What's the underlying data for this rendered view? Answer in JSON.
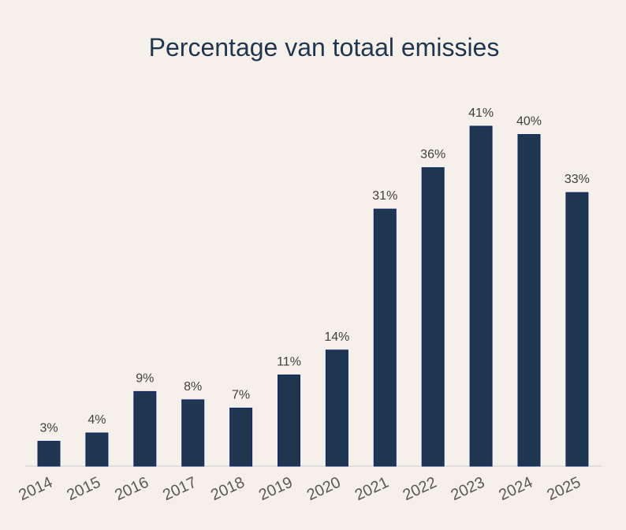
{
  "chart_data": {
    "type": "bar",
    "title": "Percentage van totaal emissies",
    "categories": [
      "2014",
      "2015",
      "2016",
      "2017",
      "2018",
      "2019",
      "2020",
      "2021",
      "2022",
      "2023",
      "2024",
      "2025"
    ],
    "values": [
      3,
      4,
      9,
      8,
      7,
      11,
      14,
      31,
      36,
      41,
      40,
      33
    ],
    "data_labels": [
      "3%",
      "4%",
      "9%",
      "8%",
      "7%",
      "11%",
      "14%",
      "31%",
      "36%",
      "41%",
      "40%",
      "33%"
    ],
    "xlabel": "",
    "ylabel": "",
    "ylim": [
      0,
      41
    ],
    "grid": false,
    "legend": "none",
    "colors": {
      "bar": "#1f3650",
      "bar_edge": "#0d2a6b",
      "background": "#f6f0ea",
      "axis": "#d9d9d9"
    }
  }
}
